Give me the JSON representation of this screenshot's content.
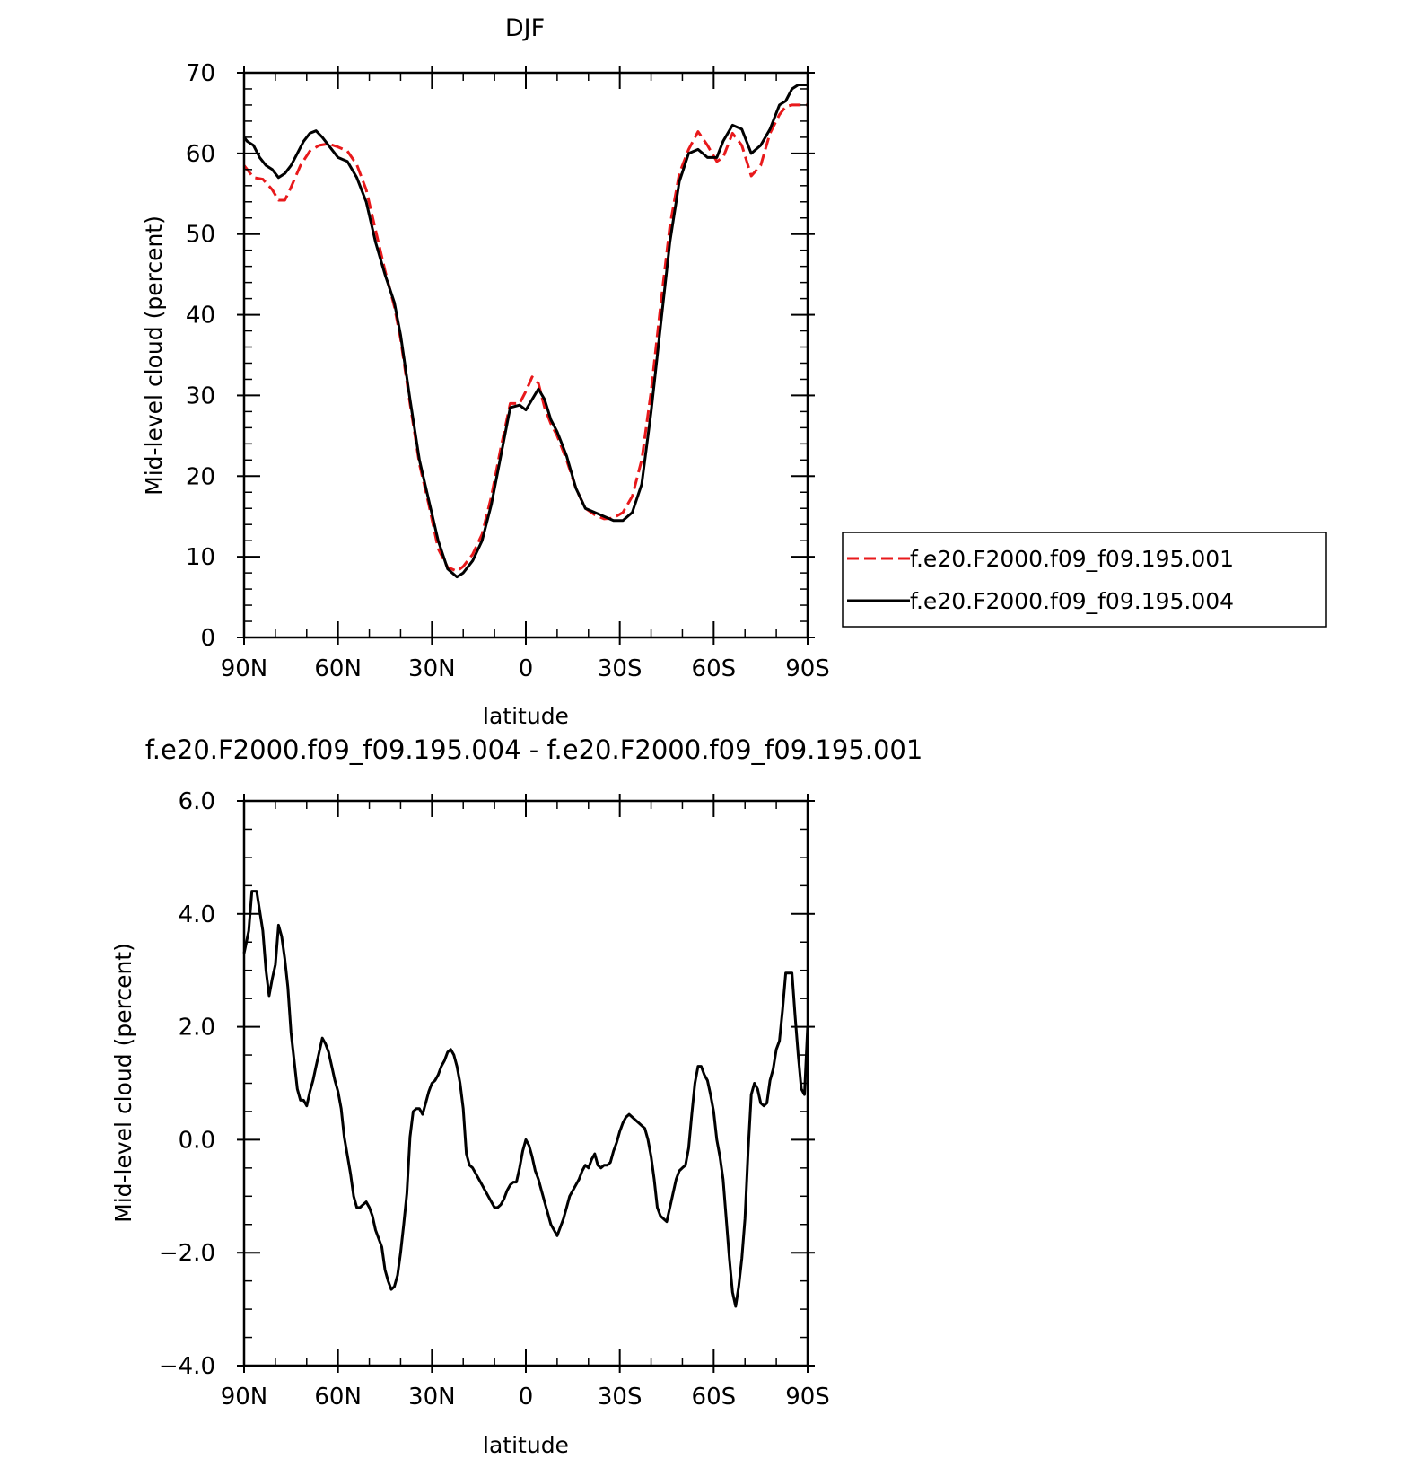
{
  "chart_data": [
    {
      "type": "line",
      "title": "DJF",
      "xlabel": "latitude",
      "ylabel": "Mid-level cloud (percent)",
      "xlim": [
        90,
        -90
      ],
      "ylim": [
        0,
        70
      ],
      "xticks": [
        90,
        60,
        30,
        0,
        -30,
        -60,
        -90
      ],
      "xtick_labels": [
        "90N",
        "60N",
        "30N",
        "0",
        "30S",
        "60S",
        "90S"
      ],
      "yticks": [
        0,
        10,
        20,
        30,
        40,
        50,
        60,
        70
      ],
      "ytick_labels": [
        "0",
        "10",
        "20",
        "30",
        "40",
        "50",
        "60",
        "70"
      ],
      "legend": "right",
      "series": [
        {
          "name": "f.e20.F2000.f09_f09.195.001",
          "color": "#e8191b",
          "style": "dashed",
          "x": [
            90,
            87,
            84,
            81,
            79,
            77,
            75,
            72,
            69,
            66,
            63,
            60,
            57,
            54,
            51,
            48,
            45,
            42,
            40,
            37,
            34,
            31,
            28,
            25,
            22,
            20,
            17,
            14,
            11,
            8,
            5,
            2,
            0,
            -2,
            -4,
            -6,
            -8,
            -10,
            -13,
            -16,
            -19,
            -22,
            -25,
            -28,
            -31,
            -34,
            -37,
            -40,
            -43,
            -46,
            -49,
            -52,
            -55,
            -58,
            -61,
            -63,
            -66,
            -69,
            -72,
            -75,
            -78,
            -81,
            -83,
            -85,
            -87,
            -89,
            -90
          ],
          "y": [
            58.5,
            57.0,
            56.8,
            55.5,
            54.2,
            54.2,
            55.8,
            58.5,
            60.3,
            61.0,
            61.2,
            60.8,
            60.3,
            58.6,
            55.5,
            50.5,
            45.5,
            41.0,
            37.0,
            29.0,
            21.5,
            16.5,
            11.0,
            8.7,
            8.2,
            8.8,
            10.3,
            12.8,
            17.5,
            23.5,
            29.0,
            29.0,
            30.5,
            32.3,
            31.5,
            28.5,
            26.5,
            25.0,
            22.0,
            18.5,
            16.0,
            15.2,
            14.7,
            14.8,
            15.5,
            17.5,
            22.0,
            30.5,
            41.0,
            51.0,
            57.5,
            60.5,
            62.7,
            61.0,
            59.0,
            59.5,
            62.5,
            61.0,
            57.2,
            58.5,
            62.5,
            64.8,
            65.8,
            66.0,
            66.0,
            66.0,
            66.0
          ]
        },
        {
          "name": "f.e20.F2000.f09_f09.195.004",
          "color": "#000000",
          "style": "solid",
          "x": [
            90,
            89,
            87,
            85,
            83,
            81,
            79,
            77,
            75,
            73,
            71,
            69,
            67,
            65,
            63,
            60,
            57,
            54,
            51,
            48,
            45,
            42,
            40,
            37,
            34,
            31,
            28,
            25,
            22,
            20,
            17,
            14,
            11,
            8,
            5,
            2,
            0,
            -2,
            -4,
            -6,
            -8,
            -10,
            -13,
            -16,
            -19,
            -22,
            -25,
            -28,
            -31,
            -34,
            -37,
            -40,
            -43,
            -46,
            -49,
            -52,
            -55,
            -58,
            -61,
            -63,
            -66,
            -69,
            -72,
            -75,
            -78,
            -81,
            -83,
            -85,
            -87,
            -89,
            -90
          ],
          "y": [
            62.0,
            61.5,
            61.0,
            59.5,
            58.5,
            58.0,
            57.0,
            57.5,
            58.5,
            60.0,
            61.5,
            62.5,
            62.8,
            62.0,
            61.0,
            59.5,
            59.0,
            57.0,
            54.0,
            49.0,
            45.0,
            41.5,
            37.5,
            29.5,
            22.0,
            17.0,
            12.0,
            8.5,
            7.5,
            8.0,
            9.5,
            12.0,
            16.5,
            22.5,
            28.5,
            28.8,
            28.2,
            29.5,
            30.8,
            29.5,
            27.0,
            25.5,
            22.5,
            18.5,
            16.0,
            15.5,
            15.0,
            14.5,
            14.5,
            15.5,
            19.0,
            28.0,
            38.5,
            49.0,
            56.5,
            60.0,
            60.5,
            59.5,
            59.5,
            61.5,
            63.5,
            63.0,
            60.0,
            61.0,
            63.0,
            66.0,
            66.5,
            68.0,
            68.5,
            68.5,
            68.5
          ]
        }
      ]
    },
    {
      "type": "line",
      "title": "f.e20.F2000.f09_f09.195.004 - f.e20.F2000.f09_f09.195.001",
      "xlabel": "latitude",
      "ylabel": "Mid-level cloud (percent)",
      "xlim": [
        90,
        -90
      ],
      "ylim": [
        -4,
        6
      ],
      "xticks": [
        90,
        60,
        30,
        0,
        -30,
        -60,
        -90
      ],
      "xtick_labels": [
        "90N",
        "60N",
        "30N",
        "0",
        "30S",
        "60S",
        "90S"
      ],
      "yticks": [
        -4,
        -2,
        0,
        2,
        4,
        6
      ],
      "ytick_labels": [
        "−4.0",
        "−2.0",
        "0.0",
        "2.0",
        "4.0",
        "6.0"
      ],
      "series": [
        {
          "color": "#000000",
          "style": "solid",
          "x": [
            90,
            88.5,
            87.5,
            86,
            84,
            83,
            82,
            81,
            80,
            79,
            78,
            77,
            76,
            75,
            74,
            73,
            72,
            71,
            70,
            69,
            68,
            67,
            66,
            65,
            64,
            63,
            62,
            61,
            60,
            59,
            58,
            56,
            55,
            54,
            53,
            52,
            51,
            50,
            49,
            48,
            47,
            46,
            45,
            44,
            43,
            42,
            41,
            40,
            39,
            38,
            37,
            36,
            35,
            34,
            33,
            32,
            31,
            30,
            29,
            28,
            27,
            26,
            25,
            24,
            23,
            22,
            21,
            20,
            19,
            18,
            17,
            16,
            15,
            14,
            13,
            12,
            11,
            10,
            9,
            8,
            7,
            6,
            5,
            4,
            3,
            2,
            1,
            0,
            -1,
            -2,
            -3,
            -4,
            -5,
            -6,
            -7,
            -8,
            -9,
            -10,
            -11,
            -12,
            -13,
            -14,
            -15,
            -16,
            -17,
            -18,
            -19,
            -20,
            -21,
            -22,
            -23,
            -24,
            -25,
            -26,
            -27,
            -28,
            -29,
            -30,
            -31,
            -32,
            -33,
            -34,
            -35,
            -36,
            -37,
            -38,
            -39,
            -40,
            -41,
            -42,
            -43,
            -44,
            -45,
            -46,
            -47,
            -48,
            -49,
            -50,
            -51,
            -52,
            -53,
            -54,
            -55,
            -56,
            -57,
            -58,
            -59,
            -60,
            -61,
            -62,
            -63,
            -64,
            -65,
            -66,
            -67,
            -68,
            -69,
            -70,
            -71,
            -72,
            -73,
            -74,
            -75,
            -76,
            -77,
            -78,
            -79,
            -80,
            -81,
            -82,
            -83,
            -84,
            -85,
            -86,
            -87,
            -88,
            -89,
            -90
          ],
          "y": [
            3.3,
            3.7,
            4.4,
            4.4,
            3.7,
            3.0,
            2.55,
            2.85,
            3.1,
            3.8,
            3.6,
            3.2,
            2.7,
            1.9,
            1.4,
            0.9,
            0.7,
            0.7,
            0.6,
            0.85,
            1.05,
            1.3,
            1.55,
            1.8,
            1.7,
            1.55,
            1.3,
            1.05,
            0.85,
            0.55,
            0.05,
            -0.6,
            -1.0,
            -1.2,
            -1.2,
            -1.15,
            -1.1,
            -1.2,
            -1.35,
            -1.6,
            -1.75,
            -1.9,
            -2.3,
            -2.5,
            -2.65,
            -2.6,
            -2.4,
            -2.0,
            -1.5,
            -0.95,
            0.05,
            0.5,
            0.55,
            0.55,
            0.45,
            0.65,
            0.85,
            1.0,
            1.05,
            1.15,
            1.3,
            1.4,
            1.55,
            1.6,
            1.5,
            1.3,
            1.0,
            0.55,
            -0.25,
            -0.45,
            -0.5,
            -0.6,
            -0.7,
            -0.8,
            -0.9,
            -1.0,
            -1.1,
            -1.2,
            -1.2,
            -1.15,
            -1.05,
            -0.9,
            -0.8,
            -0.75,
            -0.75,
            -0.5,
            -0.2,
            0.0,
            -0.1,
            -0.3,
            -0.55,
            -0.7,
            -0.9,
            -1.1,
            -1.3,
            -1.5,
            -1.6,
            -1.7,
            -1.55,
            -1.4,
            -1.2,
            -1.0,
            -0.9,
            -0.8,
            -0.7,
            -0.55,
            -0.45,
            -0.5,
            -0.35,
            -0.25,
            -0.45,
            -0.5,
            -0.45,
            -0.45,
            -0.4,
            -0.2,
            -0.05,
            0.15,
            0.3,
            0.4,
            0.45,
            0.4,
            0.35,
            0.3,
            0.25,
            0.2,
            0.0,
            -0.3,
            -0.7,
            -1.2,
            -1.35,
            -1.4,
            -1.45,
            -1.2,
            -0.95,
            -0.7,
            -0.55,
            -0.5,
            -0.45,
            -0.15,
            0.45,
            1.0,
            1.3,
            1.3,
            1.15,
            1.05,
            0.8,
            0.5,
            0.0,
            -0.3,
            -0.7,
            -1.4,
            -2.1,
            -2.7,
            -2.95,
            -2.6,
            -2.1,
            -1.4,
            -0.2,
            0.8,
            1.0,
            0.9,
            0.65,
            0.6,
            0.65,
            1.05,
            1.25,
            1.6,
            1.75,
            2.3,
            2.95,
            2.95,
            2.95,
            2.2,
            1.5,
            0.9,
            0.8,
            2.0
          ]
        }
      ]
    }
  ]
}
